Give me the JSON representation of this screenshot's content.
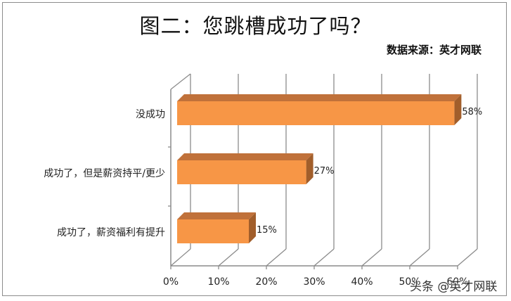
{
  "title": "图二：您跳槽成功了吗？",
  "source": "数据来源：英才网联",
  "watermark": "头条 @英才网联",
  "colors": {
    "bar_front": "#F79646",
    "bar_top": "#C0713A",
    "bar_side": "#A15E2B",
    "grid": "#8c8c8c",
    "frame": "#8c8c8c"
  },
  "chart_data": {
    "type": "bar",
    "orientation": "horizontal",
    "style": "3d-clustered",
    "title": "图二：您跳槽成功了吗？",
    "subtitle": "数据来源：英才网联",
    "categories": [
      "没成功",
      "成功了，但是薪资持平/更少",
      "成功了，薪资福利有提升"
    ],
    "values": [
      58,
      27,
      15
    ],
    "value_labels": [
      "58%",
      "27%",
      "15%"
    ],
    "xlabel": "",
    "ylabel": "",
    "xlim": [
      0,
      60
    ],
    "x_ticks": [
      "0%",
      "10%",
      "20%",
      "30%",
      "40%",
      "50%",
      "60%"
    ],
    "grid": true,
    "legend": "none"
  }
}
